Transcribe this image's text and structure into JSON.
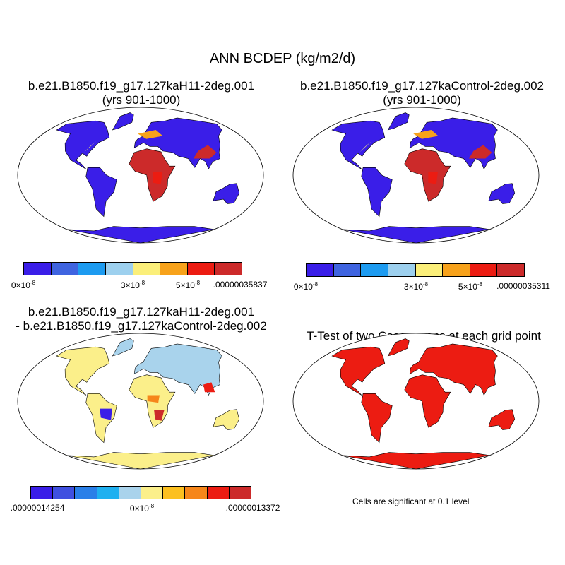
{
  "main_title": "ANN BCDEP (kg/m2/d)",
  "panels": [
    {
      "title_line1": "b.e21.B1850.f19_g17.127kaH11-2deg.001",
      "title_line2": "(yrs 901-1000)",
      "colorbar": {
        "colors": [
          "#3a1ee8",
          "#3f64e0",
          "#1d9bf0",
          "#9dd0ee",
          "#fbef7a",
          "#f7a21b",
          "#ec1c12",
          "#cc2a2a"
        ],
        "labels": [
          "0×10",
          "3×10",
          "5×10",
          ".00000035837"
        ],
        "exponent": "-8"
      }
    },
    {
      "title_line1": "b.e21.B1850.f19_g17.127kaControl-2deg.002",
      "title_line2": "(yrs 901-1000)",
      "colorbar": {
        "colors": [
          "#3a1ee8",
          "#3f64e0",
          "#1d9bf0",
          "#9dd0ee",
          "#fbef7a",
          "#f7a21b",
          "#ec1c12",
          "#cc2a2a"
        ],
        "labels": [
          "0×10",
          "3×10",
          "5×10",
          ".00000035311"
        ],
        "exponent": "-8"
      }
    },
    {
      "title_line1": "b.e21.B1850.f19_g17.127kaH11-2deg.001",
      "title_line2": "- b.e21.B1850.f19_g17.127kaControl-2deg.002",
      "colorbar": {
        "colors": [
          "#3a1ee8",
          "#3f50e0",
          "#2a7fe8",
          "#1fb0f0",
          "#a9d3ec",
          "#fbef8a",
          "#fcc020",
          "#f6861a",
          "#ec1c12",
          "#cc2a2a"
        ],
        "labels": [
          ".00000014254",
          "0×10",
          ".00000013372"
        ],
        "exponent": "-8"
      }
    },
    {
      "title_line1": "T-Test of two Case means at each grid point",
      "note": "Cells are significant at 0.1 level"
    }
  ],
  "map_colors": {
    "land_base": [
      "#3a1ee8",
      "#3a1ee8",
      "#fbef8a",
      "#ec1c12"
    ],
    "ocean": "#ffffff",
    "coast": "#000000"
  }
}
